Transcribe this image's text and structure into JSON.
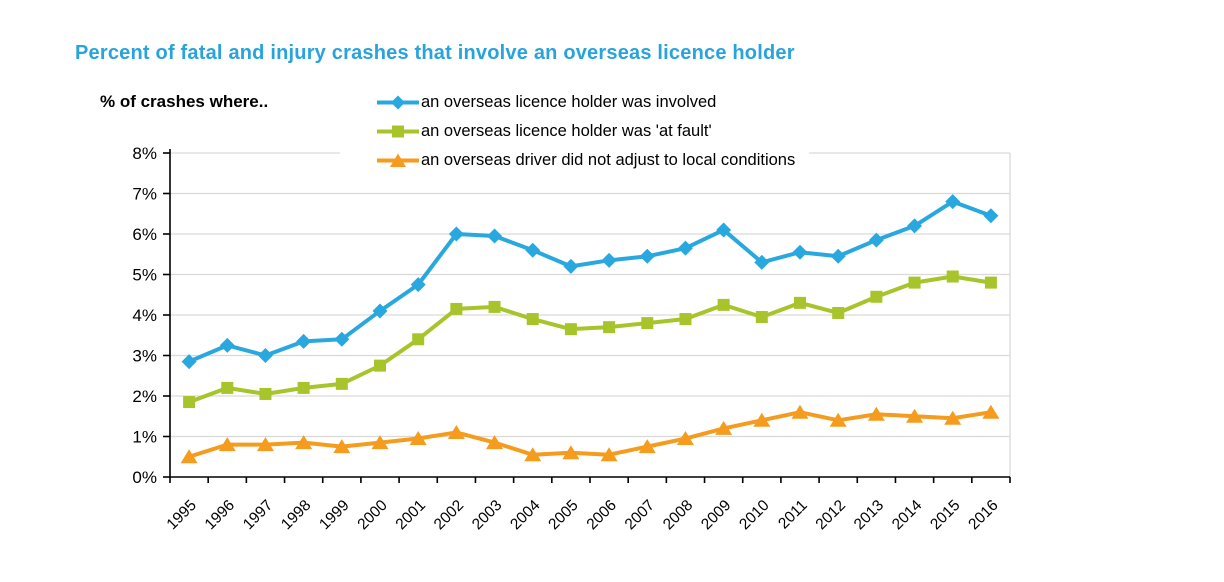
{
  "title": {
    "text": "Percent of fatal and injury crashes that involve an overseas licence holder",
    "color": "#29A3DC"
  },
  "axis_note": "% of crashes where..",
  "colors": {
    "grid": "#D9D9D9",
    "axis": "#000000",
    "tick_text": "#000000",
    "background": "#FFFFFF"
  },
  "chart_data": {
    "type": "line",
    "title": "Percent of fatal and injury crashes that involve an overseas licence holder",
    "x": [
      1995,
      1996,
      1997,
      1998,
      1999,
      2000,
      2001,
      2002,
      2003,
      2004,
      2005,
      2006,
      2007,
      2008,
      2009,
      2010,
      2011,
      2012,
      2013,
      2014,
      2015,
      2016
    ],
    "xlabel": "",
    "ylabel": "% of crashes where..",
    "ylim": [
      0,
      8
    ],
    "yticks": [
      0,
      1,
      2,
      3,
      4,
      5,
      6,
      7,
      8
    ],
    "ytick_labels": [
      "0%",
      "1%",
      "2%",
      "3%",
      "4%",
      "5%",
      "6%",
      "7%",
      "8%"
    ],
    "grid": "horizontal",
    "legend_position": "top",
    "series": [
      {
        "name": "an overseas licence holder was involved",
        "marker": "diamond",
        "color": "#29A8E0",
        "values": [
          2.85,
          3.25,
          3.0,
          3.35,
          3.4,
          4.1,
          4.75,
          6.0,
          5.95,
          5.6,
          5.2,
          5.35,
          5.45,
          5.65,
          6.1,
          5.3,
          5.55,
          5.45,
          5.85,
          6.2,
          6.8,
          6.45
        ]
      },
      {
        "name": "an overseas licence holder was 'at fault'",
        "marker": "square",
        "color": "#A7C52B",
        "values": [
          1.85,
          2.2,
          2.05,
          2.2,
          2.3,
          2.75,
          3.4,
          4.15,
          4.2,
          3.9,
          3.65,
          3.7,
          3.8,
          3.9,
          4.25,
          3.95,
          4.3,
          4.05,
          4.45,
          4.8,
          4.95,
          4.8
        ]
      },
      {
        "name": "an overseas driver did not adjust to local conditions",
        "marker": "triangle",
        "color": "#F59B1E",
        "values": [
          0.5,
          0.8,
          0.8,
          0.85,
          0.75,
          0.85,
          0.95,
          1.1,
          0.85,
          0.55,
          0.6,
          0.55,
          0.75,
          0.95,
          1.2,
          1.4,
          1.6,
          1.4,
          1.55,
          1.5,
          1.45,
          1.6
        ]
      }
    ]
  }
}
